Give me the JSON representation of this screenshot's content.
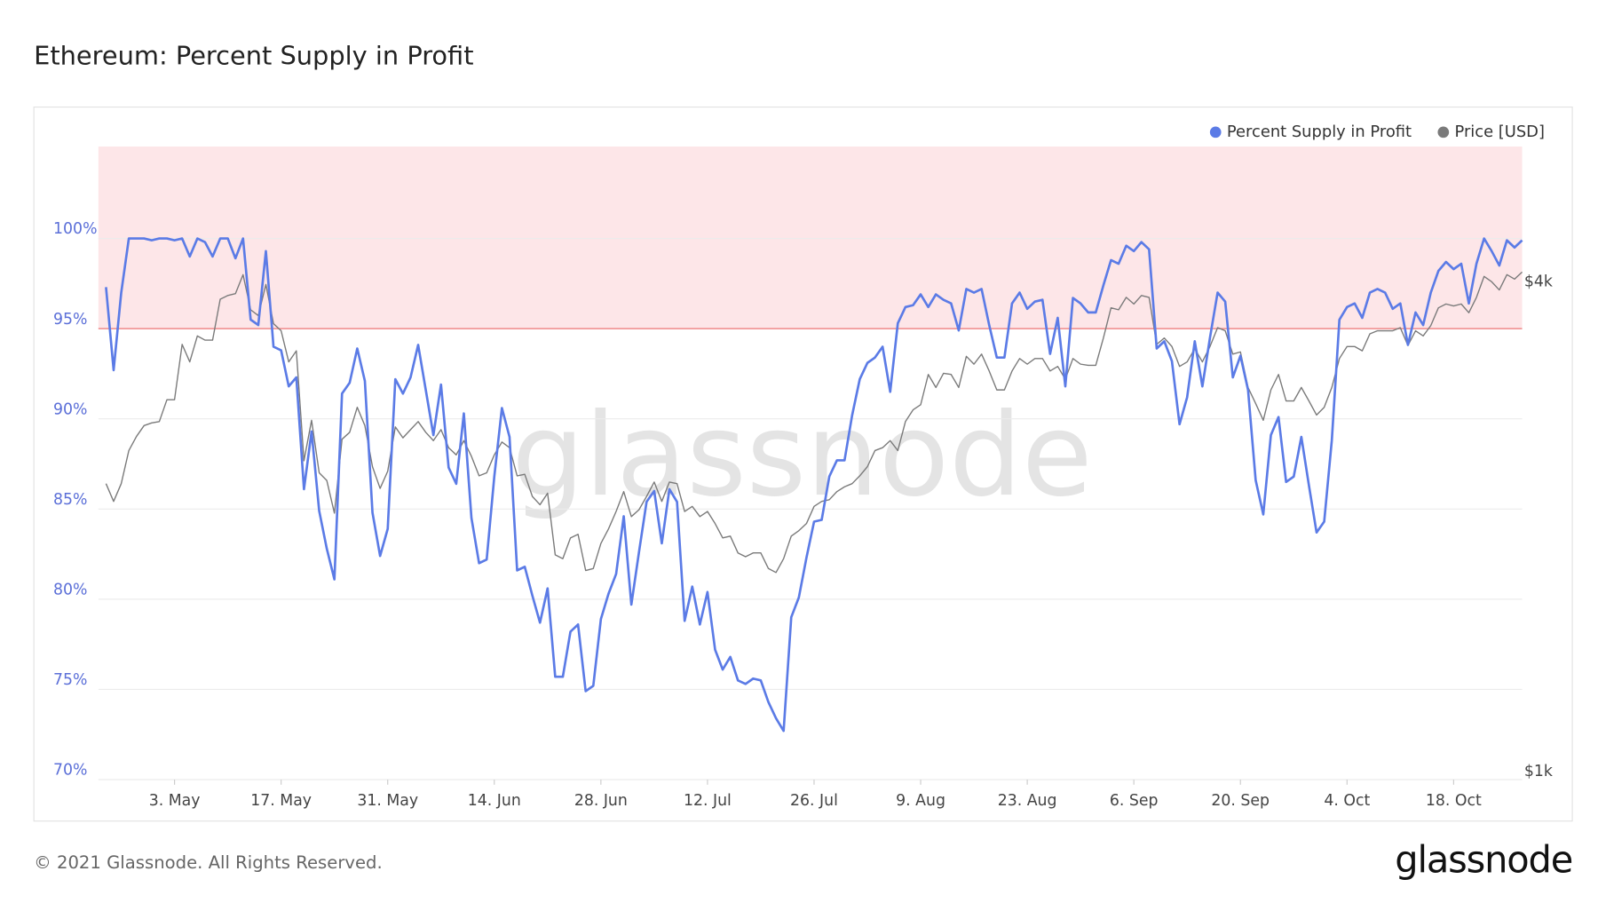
{
  "chart_data": {
    "type": "line",
    "title": "Ethereum: Percent Supply in Profit",
    "x": [
      "04-24",
      "04-25",
      "04-26",
      "04-27",
      "04-28",
      "04-29",
      "04-30",
      "05-01",
      "05-02",
      "05-03",
      "05-04",
      "05-05",
      "05-06",
      "05-07",
      "05-08",
      "05-09",
      "05-10",
      "05-11",
      "05-12",
      "05-13",
      "05-14",
      "05-15",
      "05-16",
      "05-17",
      "05-18",
      "05-19",
      "05-20",
      "05-21",
      "05-22",
      "05-23",
      "05-24",
      "05-25",
      "05-26",
      "05-27",
      "05-28",
      "05-29",
      "05-30",
      "05-31",
      "06-01",
      "06-02",
      "06-03",
      "06-04",
      "06-05",
      "06-06",
      "06-07",
      "06-08",
      "06-09",
      "06-10",
      "06-11",
      "06-12",
      "06-13",
      "06-14",
      "06-15",
      "06-16",
      "06-17",
      "06-18",
      "06-19",
      "06-20",
      "06-21",
      "06-22",
      "06-23",
      "06-24",
      "06-25",
      "06-26",
      "06-27",
      "06-28",
      "06-29",
      "06-30",
      "07-01",
      "07-02",
      "07-03",
      "07-04",
      "07-05",
      "07-06",
      "07-07",
      "07-08",
      "07-09",
      "07-10",
      "07-11",
      "07-12",
      "07-13",
      "07-14",
      "07-15",
      "07-16",
      "07-17",
      "07-18",
      "07-19",
      "07-20",
      "07-21",
      "07-22",
      "07-23",
      "07-24",
      "07-25",
      "07-26",
      "07-27",
      "07-28",
      "07-29",
      "07-30",
      "07-31",
      "08-01",
      "08-02",
      "08-03",
      "08-04",
      "08-05",
      "08-06",
      "08-07",
      "08-08",
      "08-09",
      "08-10",
      "08-11",
      "08-12",
      "08-13",
      "08-14",
      "08-15",
      "08-16",
      "08-17",
      "08-18",
      "08-19",
      "08-20",
      "08-21",
      "08-22",
      "08-23",
      "08-24",
      "08-25",
      "08-26",
      "08-27",
      "08-28",
      "08-29",
      "08-30",
      "08-31",
      "09-01",
      "09-02",
      "09-03",
      "09-04",
      "09-05",
      "09-06",
      "09-07",
      "09-08",
      "09-09",
      "09-10",
      "09-11",
      "09-12",
      "09-13",
      "09-14",
      "09-15",
      "09-16",
      "09-17",
      "09-18",
      "09-19",
      "09-20",
      "09-21",
      "09-22",
      "09-23",
      "09-24",
      "09-25",
      "09-26",
      "09-27",
      "09-28",
      "09-29",
      "09-30",
      "10-01",
      "10-02",
      "10-03",
      "10-04",
      "10-05",
      "10-06",
      "10-07",
      "10-08",
      "10-09",
      "10-10",
      "10-11",
      "10-12",
      "10-13",
      "10-14",
      "10-15",
      "10-16",
      "10-17",
      "10-18",
      "10-19",
      "10-20",
      "10-21",
      "10-22",
      "10-23",
      "10-24",
      "10-25",
      "10-26",
      "10-27"
    ],
    "series": [
      {
        "name": "Percent Supply in Profit",
        "color": "#5b7be6",
        "values": [
          97.3,
          92.7,
          97.0,
          100,
          100,
          100,
          99.9,
          100,
          100,
          99.9,
          100,
          99.0,
          100,
          99.8,
          99.0,
          100,
          100,
          98.9,
          100,
          95.5,
          95.2,
          99.3,
          94.0,
          93.8,
          91.8,
          92.3,
          86.1,
          89.3,
          84.9,
          82.8,
          81.1,
          91.4,
          92.0,
          93.9,
          92.1,
          84.8,
          82.4,
          83.9,
          92.2,
          91.4,
          92.3,
          94.1,
          91.6,
          89.1,
          91.9,
          87.3,
          86.4,
          90.3,
          84.5,
          82.0,
          82.2,
          86.8,
          90.6,
          89.0,
          81.6,
          81.8,
          80.2,
          78.7,
          80.6,
          75.7,
          75.7,
          78.2,
          78.6,
          74.9,
          75.2,
          78.9,
          80.3,
          81.4,
          84.6,
          79.7,
          82.6,
          85.4,
          86.0,
          83.1,
          86.1,
          85.4,
          78.8,
          80.7,
          78.6,
          80.4,
          77.2,
          76.1,
          76.8,
          75.5,
          75.3,
          75.6,
          75.5,
          74.3,
          73.4,
          72.7,
          79.0,
          80.1,
          82.3,
          84.3,
          84.4,
          86.8,
          87.7,
          87.7,
          90.2,
          92.2,
          93.1,
          93.4,
          94.0,
          91.5,
          95.3,
          96.2,
          96.3,
          96.9,
          96.2,
          96.9,
          96.6,
          96.4,
          94.9,
          97.2,
          97.0,
          97.2,
          95.2,
          93.4,
          93.4,
          96.4,
          97.0,
          96.1,
          96.5,
          96.6,
          93.6,
          95.6,
          91.8,
          96.7,
          96.4,
          95.9,
          95.9,
          97.4,
          98.8,
          98.6,
          99.6,
          99.3,
          99.8,
          99.4,
          93.9,
          94.3,
          93.2,
          89.7,
          91.2,
          94.3,
          91.8,
          94.5,
          97.0,
          96.5,
          92.3,
          93.5,
          91.6,
          86.6,
          84.7,
          89.1,
          90.1,
          86.5,
          86.8,
          89.0,
          86.3,
          83.7,
          84.3,
          88.8,
          95.5,
          96.2,
          96.4,
          95.6,
          97.0,
          97.2,
          97.0,
          96.1,
          96.4,
          94.1,
          95.9,
          95.2,
          97.0,
          98.2,
          98.7,
          98.3,
          98.6,
          96.4,
          98.6,
          100,
          99.3,
          98.5,
          99.9,
          99.5,
          99.9
        ]
      },
      {
        "name": "Price [USD]",
        "color": "#7a7a7a",
        "axis": "y2",
        "values": [
          2280,
          2170,
          2280,
          2500,
          2600,
          2680,
          2700,
          2710,
          2880,
          2880,
          3360,
          3200,
          3440,
          3400,
          3400,
          3810,
          3850,
          3870,
          4080,
          3700,
          3640,
          3970,
          3560,
          3490,
          3200,
          3300,
          2430,
          2720,
          2350,
          2300,
          2100,
          2580,
          2630,
          2820,
          2680,
          2390,
          2250,
          2360,
          2670,
          2590,
          2650,
          2710,
          2630,
          2570,
          2650,
          2520,
          2470,
          2570,
          2460,
          2330,
          2350,
          2470,
          2560,
          2520,
          2330,
          2340,
          2200,
          2150,
          2220,
          1870,
          1850,
          1960,
          1980,
          1790,
          1800,
          1930,
          2010,
          2110,
          2230,
          2080,
          2120,
          2200,
          2290,
          2170,
          2290,
          2280,
          2110,
          2140,
          2080,
          2110,
          2040,
          1960,
          1970,
          1880,
          1860,
          1880,
          1880,
          1800,
          1780,
          1850,
          1970,
          2000,
          2040,
          2140,
          2170,
          2180,
          2230,
          2260,
          2280,
          2330,
          2390,
          2500,
          2520,
          2570,
          2500,
          2710,
          2800,
          2840,
          3090,
          2980,
          3100,
          3090,
          2980,
          3250,
          3180,
          3270,
          3120,
          2960,
          2960,
          3120,
          3230,
          3180,
          3230,
          3230,
          3120,
          3160,
          3050,
          3230,
          3180,
          3170,
          3170,
          3420,
          3720,
          3700,
          3830,
          3760,
          3850,
          3830,
          3360,
          3420,
          3340,
          3160,
          3200,
          3320,
          3200,
          3340,
          3520,
          3490,
          3270,
          3290,
          2980,
          2850,
          2720,
          2960,
          3090,
          2870,
          2870,
          2980,
          2870,
          2760,
          2820,
          2980,
          3230,
          3340,
          3340,
          3300,
          3460,
          3490,
          3490,
          3490,
          3520,
          3350,
          3490,
          3440,
          3540,
          3720,
          3760,
          3740,
          3760,
          3670,
          3830,
          4060,
          4000,
          3910,
          4080,
          4030,
          4110
        ]
      }
    ],
    "xlim": [
      "04-23",
      "10-27"
    ],
    "xticks": [
      {
        "value": "05-03",
        "label": "3. May"
      },
      {
        "value": "05-17",
        "label": "17. May"
      },
      {
        "value": "05-31",
        "label": "31. May"
      },
      {
        "value": "06-14",
        "label": "14. Jun"
      },
      {
        "value": "06-28",
        "label": "28. Jun"
      },
      {
        "value": "07-12",
        "label": "12. Jul"
      },
      {
        "value": "07-26",
        "label": "26. Jul"
      },
      {
        "value": "08-09",
        "label": "9. Aug"
      },
      {
        "value": "08-23",
        "label": "23. Aug"
      },
      {
        "value": "09-06",
        "label": "6. Sep"
      },
      {
        "value": "09-20",
        "label": "20. Sep"
      },
      {
        "value": "10-04",
        "label": "4. Oct"
      },
      {
        "value": "10-18",
        "label": "18. Oct"
      }
    ],
    "ylim": [
      70,
      105.1
    ],
    "yticks": [
      {
        "value": 70,
        "label": "70%"
      },
      {
        "value": 75,
        "label": "75%"
      },
      {
        "value": 80,
        "label": "80%"
      },
      {
        "value": 85,
        "label": "85%"
      },
      {
        "value": 90,
        "label": "90%"
      },
      {
        "value": 95,
        "label": "95%"
      },
      {
        "value": 100,
        "label": "100%"
      }
    ],
    "y2lim": [
      1000,
      5830
    ],
    "y2log": true,
    "y2ticks": [
      {
        "value": 1000,
        "label": "$1k"
      },
      {
        "value": 4000,
        "label": "$4k"
      }
    ],
    "threshold": 95,
    "band_color": "#fde6e8",
    "threshold_color": "#f08a8a",
    "grid": true,
    "legend": "top-right"
  },
  "watermark": "glassnode",
  "footer": "© 2021 Glassnode. All Rights Reserved.",
  "logo": "glassnode"
}
